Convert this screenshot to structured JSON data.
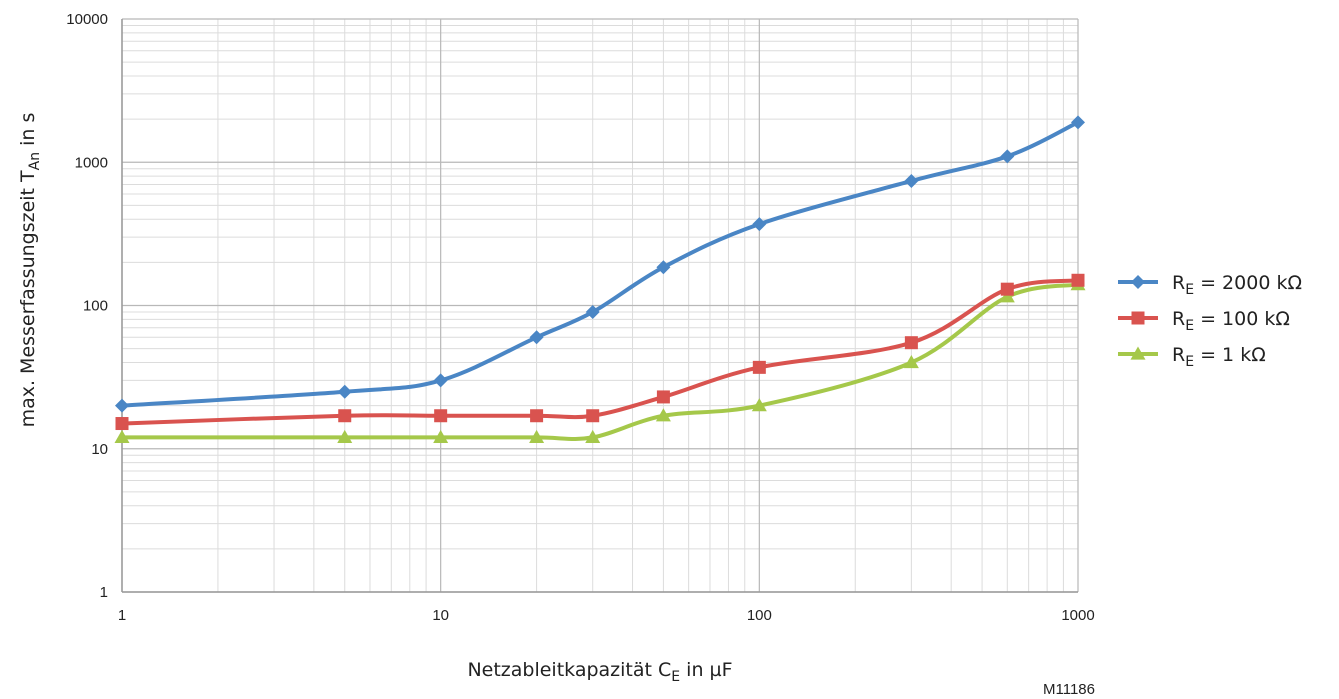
{
  "chart_data": {
    "type": "line",
    "xlabel_main": "Netzableitkapazität C",
    "xlabel_sub": "E",
    "xlabel_tail": " in µF",
    "ylabel_main": "max. Messerfassungszeit T",
    "ylabel_sub": "An",
    "ylabel_tail": " in s",
    "x_scale": "log",
    "y_scale": "log",
    "xlim": [
      1,
      1000
    ],
    "ylim": [
      1,
      10000
    ],
    "x_ticks": [
      "1",
      "10",
      "100",
      "1000"
    ],
    "y_ticks": [
      "1",
      "10",
      "100",
      "1000",
      "10000"
    ],
    "grid": true,
    "legend_position": "right",
    "x": [
      1,
      5,
      10,
      20,
      30,
      50,
      100,
      300,
      600,
      1000
    ],
    "series": [
      {
        "name_main": "R",
        "name_sub": "E",
        "name_tail": " = 2000 kΩ",
        "color": "#4a86c5",
        "marker": "diamond",
        "values": [
          20,
          25,
          30,
          60,
          90,
          185,
          370,
          740,
          1100,
          1900
        ]
      },
      {
        "name_main": "R",
        "name_sub": "E",
        "name_tail": " = 100 kΩ",
        "color": "#d9534f",
        "marker": "square",
        "values": [
          15,
          17,
          17,
          17,
          17,
          23,
          37,
          55,
          130,
          150
        ]
      },
      {
        "name_main": "R",
        "name_sub": "E",
        "name_tail": " = 1 kΩ",
        "color": "#a5c84a",
        "marker": "triangle",
        "values": [
          12,
          12,
          12,
          12,
          12,
          17,
          20,
          40,
          115,
          140
        ]
      }
    ]
  },
  "figure_ref": "M11186"
}
